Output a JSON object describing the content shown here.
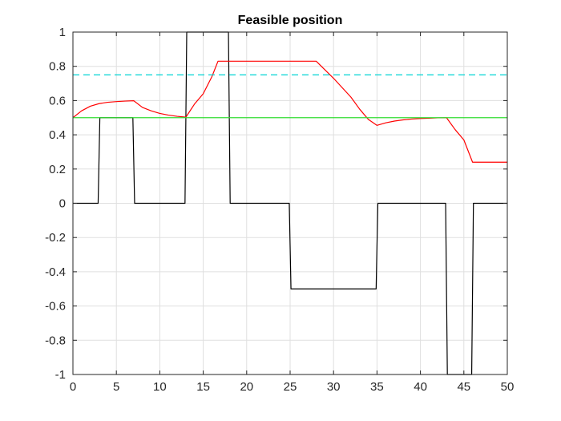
{
  "chart_data": {
    "type": "line",
    "title": "Feasible position",
    "xlabel": "",
    "ylabel": "",
    "xlim": [
      0,
      50
    ],
    "ylim": [
      -1,
      1
    ],
    "x_ticks": [
      0,
      5,
      10,
      15,
      20,
      25,
      30,
      35,
      40,
      45,
      50
    ],
    "y_ticks": [
      -1,
      -0.8,
      -0.6,
      -0.4,
      -0.2,
      0,
      0.2,
      0.4,
      0.6,
      0.8,
      1
    ],
    "x_tick_labels": [
      "0",
      "5",
      "10",
      "15",
      "20",
      "25",
      "30",
      "35",
      "40",
      "45",
      "50"
    ],
    "y_tick_labels": [
      "-1",
      "-0.8",
      "-0.6",
      "-0.4",
      "-0.2",
      "0",
      "0.2",
      "0.4",
      "0.6",
      "0.8",
      "1"
    ],
    "grid": true,
    "legend": "none",
    "series": [
      {
        "color": "#000000",
        "style": "solid",
        "x": [
          0,
          2.9,
          3.1,
          6.9,
          7.1,
          12.9,
          13.1,
          17.9,
          18.1,
          24.9,
          25.1,
          34.9,
          35.1,
          42.9,
          43.1,
          45.9,
          46.1,
          50
        ],
        "y": [
          0,
          0,
          0.5,
          0.5,
          0,
          0,
          1,
          1,
          0,
          0,
          -0.5,
          -0.5,
          0,
          0,
          -1,
          -1,
          0,
          0
        ]
      },
      {
        "color": "#ff0000",
        "style": "solid",
        "x": [
          0,
          1,
          2,
          3,
          4,
          5,
          6,
          7,
          8,
          9,
          10,
          11,
          12,
          13,
          14,
          15,
          16,
          16.7,
          18,
          20,
          22,
          24,
          26,
          28,
          30,
          32,
          33,
          34,
          35,
          36,
          37,
          38,
          39,
          40,
          41,
          42,
          43,
          44,
          45,
          46,
          48,
          50
        ],
        "y": [
          0.5,
          0.54,
          0.567,
          0.582,
          0.59,
          0.594,
          0.597,
          0.599,
          0.56,
          0.54,
          0.525,
          0.515,
          0.508,
          0.503,
          0.58,
          0.64,
          0.74,
          0.83,
          0.83,
          0.83,
          0.83,
          0.83,
          0.83,
          0.83,
          0.73,
          0.62,
          0.55,
          0.49,
          0.455,
          0.47,
          0.48,
          0.487,
          0.492,
          0.495,
          0.497,
          0.499,
          0.5,
          0.43,
          0.37,
          0.24,
          0.24,
          0.24
        ]
      },
      {
        "color": "#00d4d4",
        "style": "dashed",
        "x": [
          0,
          50
        ],
        "y": [
          0.75,
          0.75
        ]
      },
      {
        "color": "#33dd33",
        "style": "solid",
        "x": [
          0,
          50
        ],
        "y": [
          0.5,
          0.5
        ]
      }
    ]
  }
}
